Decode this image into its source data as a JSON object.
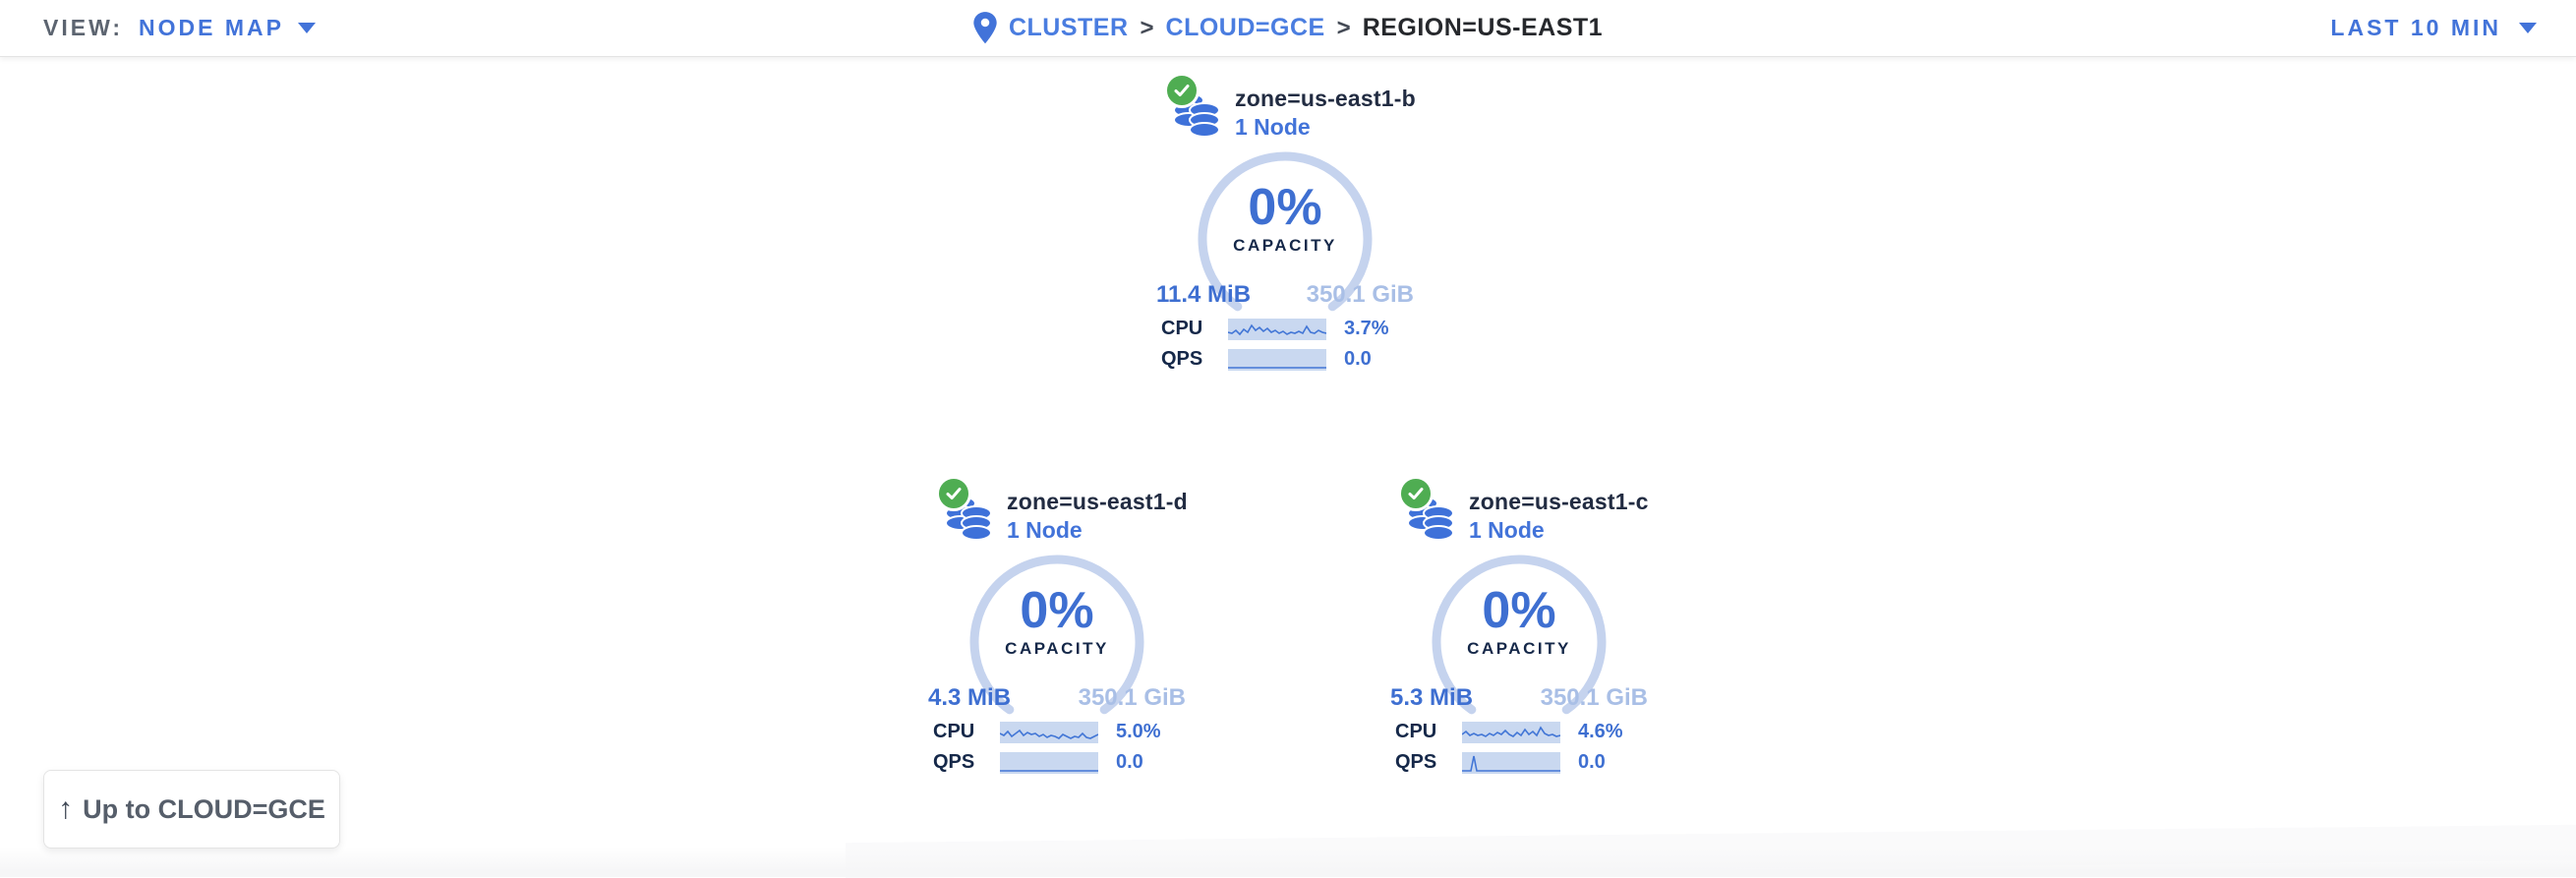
{
  "topbar": {
    "view_label": "VIEW:",
    "view_value": "NODE MAP",
    "time_range": "LAST 10 MIN"
  },
  "breadcrumb": {
    "separator": ">",
    "cluster": "CLUSTER",
    "cloud": "CLOUD=GCE",
    "region": "REGION=US-EAST1"
  },
  "zones": [
    {
      "name": "zone=us-east1-b",
      "node_count": "1 Node",
      "capacity_pct": "0%",
      "capacity_label": "CAPACITY",
      "capacity_used": "11.4 MiB",
      "capacity_total": "350.1 GiB",
      "cpu_label": "CPU",
      "cpu_value": "3.7%",
      "qps_label": "QPS",
      "qps_value": "0.0",
      "cpu_spark": [
        [
          0,
          14
        ],
        [
          4,
          15
        ],
        [
          8,
          12
        ],
        [
          12,
          16
        ],
        [
          16,
          11
        ],
        [
          20,
          14
        ],
        [
          24,
          7
        ],
        [
          28,
          12
        ],
        [
          32,
          9
        ],
        [
          36,
          13
        ],
        [
          40,
          10
        ],
        [
          44,
          14
        ],
        [
          48,
          12
        ],
        [
          52,
          15
        ],
        [
          56,
          13
        ],
        [
          60,
          16
        ],
        [
          64,
          14
        ],
        [
          68,
          15
        ],
        [
          72,
          13
        ],
        [
          76,
          15
        ],
        [
          80,
          8
        ],
        [
          84,
          14
        ],
        [
          88,
          15
        ],
        [
          92,
          12
        ],
        [
          96,
          14
        ],
        [
          100,
          15
        ]
      ],
      "qps_spark": [
        [
          0,
          19
        ],
        [
          100,
          19
        ]
      ]
    },
    {
      "name": "zone=us-east1-d",
      "node_count": "1 Node",
      "capacity_pct": "0%",
      "capacity_label": "CAPACITY",
      "capacity_used": "4.3 MiB",
      "capacity_total": "350.1 GiB",
      "cpu_label": "CPU",
      "cpu_value": "5.0%",
      "qps_label": "QPS",
      "qps_value": "0.0",
      "cpu_spark": [
        [
          0,
          12
        ],
        [
          4,
          14
        ],
        [
          8,
          10
        ],
        [
          12,
          15
        ],
        [
          16,
          12
        ],
        [
          20,
          9
        ],
        [
          24,
          14
        ],
        [
          28,
          11
        ],
        [
          32,
          13
        ],
        [
          36,
          12
        ],
        [
          40,
          15
        ],
        [
          44,
          13
        ],
        [
          48,
          16
        ],
        [
          52,
          14
        ],
        [
          56,
          15
        ],
        [
          60,
          17
        ],
        [
          64,
          13
        ],
        [
          68,
          15
        ],
        [
          72,
          17
        ],
        [
          76,
          15
        ],
        [
          80,
          16
        ],
        [
          84,
          12
        ],
        [
          88,
          16
        ],
        [
          92,
          17
        ],
        [
          96,
          15
        ],
        [
          100,
          13
        ]
      ],
      "qps_spark": [
        [
          0,
          19
        ],
        [
          100,
          19
        ]
      ]
    },
    {
      "name": "zone=us-east1-c",
      "node_count": "1 Node",
      "capacity_pct": "0%",
      "capacity_label": "CAPACITY",
      "capacity_used": "5.3 MiB",
      "capacity_total": "350.1 GiB",
      "cpu_label": "CPU",
      "cpu_value": "4.6%",
      "qps_label": "QPS",
      "qps_value": "0.0",
      "cpu_spark": [
        [
          0,
          13
        ],
        [
          4,
          10
        ],
        [
          8,
          14
        ],
        [
          12,
          12
        ],
        [
          16,
          14
        ],
        [
          20,
          13
        ],
        [
          24,
          15
        ],
        [
          28,
          12
        ],
        [
          32,
          14
        ],
        [
          36,
          11
        ],
        [
          40,
          13
        ],
        [
          44,
          9
        ],
        [
          48,
          13
        ],
        [
          52,
          15
        ],
        [
          56,
          11
        ],
        [
          60,
          14
        ],
        [
          64,
          8
        ],
        [
          68,
          13
        ],
        [
          72,
          10
        ],
        [
          76,
          14
        ],
        [
          80,
          6
        ],
        [
          84,
          12
        ],
        [
          88,
          14
        ],
        [
          92,
          13
        ],
        [
          96,
          15
        ],
        [
          100,
          14
        ]
      ],
      "qps_spark": [
        [
          0,
          19
        ],
        [
          9,
          19
        ],
        [
          12,
          4
        ],
        [
          15,
          19
        ],
        [
          100,
          19
        ]
      ]
    }
  ],
  "back_button": {
    "icon": "↑",
    "label": "Up to CLOUD=GCE"
  },
  "colors": {
    "link_blue": "#4273d9",
    "value_blue": "#3e6fd1",
    "arc_light_blue": "#c5d3ee",
    "spark_bg": "#c9d8f0",
    "total_light_blue": "#a9bfe6",
    "dark_navy": "#152849",
    "healthy_green": "#4fad52"
  }
}
